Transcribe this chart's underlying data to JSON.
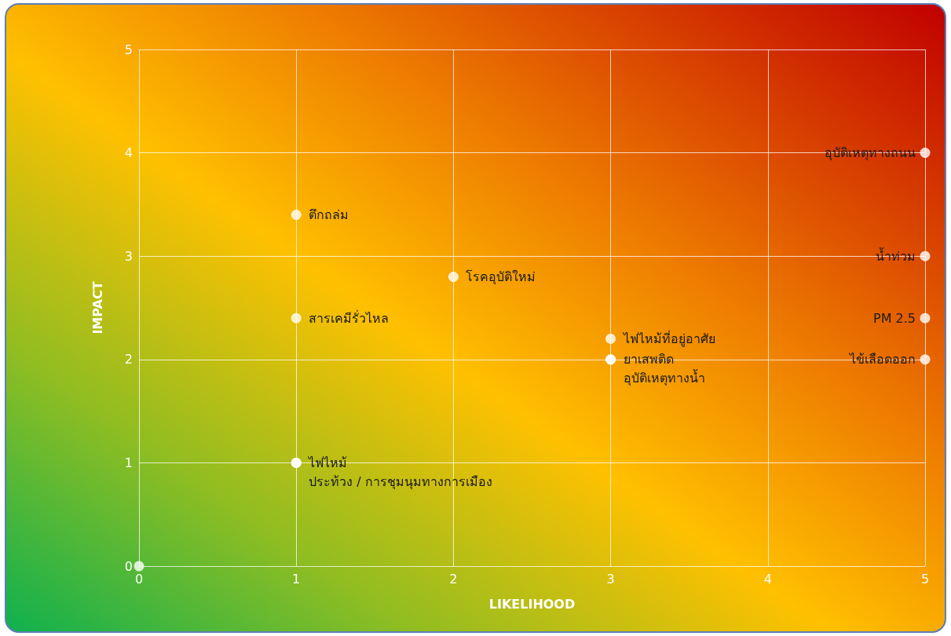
{
  "chart_data": {
    "type": "scatter",
    "xlabel": "LIKELIHOOD",
    "ylabel": "IMPACT",
    "x": [
      0,
      1,
      1,
      1,
      1,
      2,
      3,
      3,
      3,
      5,
      5,
      5,
      5
    ],
    "values": [
      0,
      3.4,
      2.4,
      1,
      1,
      2.8,
      2.2,
      2,
      2,
      4,
      3,
      2.4,
      2
    ],
    "color": "#ffffff",
    "marker": "circle",
    "xlim": [
      0,
      5
    ],
    "ylim": [
      0,
      5
    ],
    "xticks": [
      0,
      1,
      2,
      3,
      4,
      5
    ],
    "yticks": [
      0,
      1,
      2,
      3,
      4,
      5
    ],
    "grid": true,
    "annotations": [
      {
        "text": "ตึกถล่ม",
        "x": 1,
        "y": 3.4
      },
      {
        "text": "สารเคมีรั่วไหล",
        "x": 1,
        "y": 2.4
      },
      {
        "text": "ไฟไหม้",
        "x": 1,
        "y": 1
      },
      {
        "text": "ประท้วง / การชุมนุมทางการเมือง",
        "x": 1,
        "y": 1
      },
      {
        "text": "โรคอุบัติใหม่",
        "x": 2,
        "y": 2.8
      },
      {
        "text": "ไฟไหม้ที่อยู่อาศัย",
        "x": 3,
        "y": 2.2
      },
      {
        "text": "ยาเสพติด",
        "x": 3,
        "y": 2
      },
      {
        "text": "อุบัติเหตุทางน้ำ",
        "x": 3,
        "y": 2
      },
      {
        "text": "อุบัติเหตุทางถนน",
        "x": 5,
        "y": 4
      },
      {
        "text": "น้ำท่วม",
        "x": 5,
        "y": 3
      },
      {
        "text": "PM 2.5",
        "x": 5,
        "y": 2.4
      },
      {
        "text": "ไข้เลือดออก",
        "x": 5,
        "y": 2
      }
    ]
  }
}
